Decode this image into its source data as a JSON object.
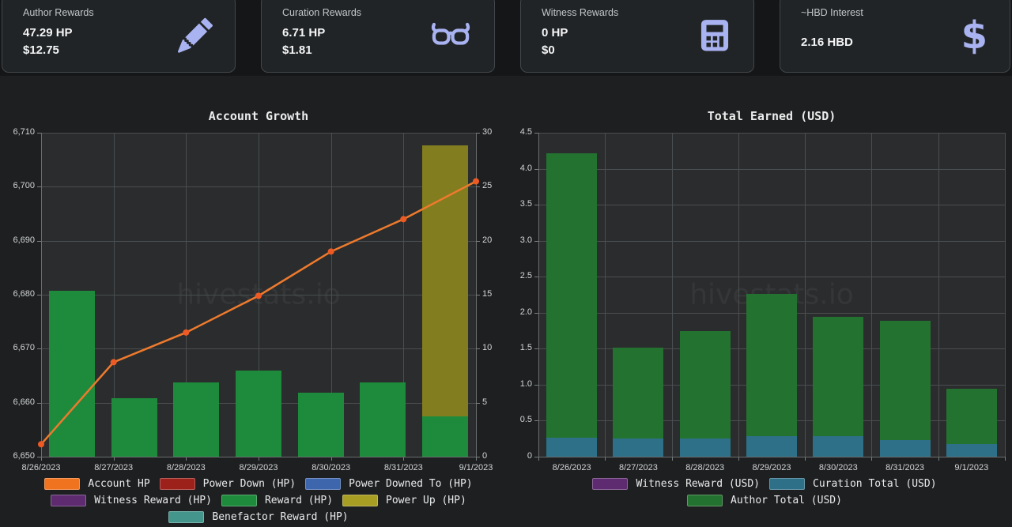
{
  "page": {
    "watermark": "hivestats.io",
    "accent_icon_color": "#a9b3f2",
    "background": "#1d1f20",
    "plot_background": "#2a2c2d",
    "gridline_color": "#4b4e50"
  },
  "cards": [
    {
      "label": "Author Rewards",
      "value": "47.29 HP",
      "value_usd": "$12.75",
      "icon": "pencil-icon"
    },
    {
      "label": "Curation Rewards",
      "value": "6.71 HP",
      "value_usd": "$1.81",
      "icon": "glasses-icon"
    },
    {
      "label": "Witness Rewards",
      "value": "0 HP",
      "value_usd": "$0",
      "icon": "calculator-icon"
    },
    {
      "label": "~HBD Interest",
      "value": "2.16 HBD",
      "icon": "dollar-icon"
    }
  ],
  "chart_data": [
    {
      "type": "bar+line combo",
      "title": "Account Growth",
      "categories": [
        "8/26/2023",
        "8/27/2023",
        "8/28/2023",
        "8/29/2023",
        "8/30/2023",
        "8/31/2023",
        "9/1/2023"
      ],
      "left_axis": {
        "min": 6650,
        "max": 6710,
        "ticks": [
          "6,710",
          "6,700",
          "6,690",
          "6,680",
          "6,670",
          "6,660",
          "6,650"
        ]
      },
      "right_axis": {
        "min": 0,
        "max": 30,
        "ticks": [
          "30",
          "25",
          "20",
          "15",
          "10",
          "5",
          "0"
        ]
      },
      "line_series": {
        "name": "Account HP",
        "axis": "left",
        "color": "#ee7a2d",
        "point_color": "#ee5a24",
        "values": [
          6652.3,
          6667.5,
          6673.0,
          6679.8,
          6688.0,
          6694.0,
          6701.0
        ]
      },
      "bar_series": [
        {
          "name": "Reward (HP)",
          "axis": "right",
          "color": "#1e8b3c",
          "values": [
            15.4,
            5.4,
            6.9,
            8.0,
            5.9,
            6.9,
            3.7
          ]
        },
        {
          "name": "Power Up (HP)",
          "axis": "right",
          "color": "#827d1e",
          "values": [
            0,
            0,
            0,
            0,
            0,
            0,
            25.1
          ]
        }
      ],
      "legend_rows": [
        [
          {
            "label": "Account HP",
            "color": "#f0741f"
          },
          {
            "label": "Power Down (HP)",
            "color": "#9c211b"
          },
          {
            "label": "Power Downed To (HP)",
            "color": "#3e66ad"
          }
        ],
        [
          {
            "label": "Witness Reward (HP)",
            "color": "#5e2b71"
          },
          {
            "label": "Reward (HP)",
            "color": "#1e8b3c"
          },
          {
            "label": "Power Up (HP)",
            "color": "#a89e23"
          }
        ],
        [
          {
            "label": "Benefactor Reward (HP)",
            "color": "#44968c"
          }
        ]
      ]
    },
    {
      "type": "stacked bar",
      "title": "Total Earned (USD)",
      "categories": [
        "8/26/2023",
        "8/27/2023",
        "8/28/2023",
        "8/29/2023",
        "8/30/2023",
        "8/31/2023",
        "9/1/2023"
      ],
      "y_axis": {
        "min": 0,
        "max": 4.5,
        "ticks": [
          "4.5",
          "4.0",
          "3.5",
          "3.0",
          "2.5",
          "2.0",
          "1.5",
          "1.0",
          "0.5",
          "0"
        ]
      },
      "series": [
        {
          "name": "Curation Total (USD)",
          "color": "#2d7088",
          "values": [
            0.26,
            0.25,
            0.25,
            0.28,
            0.29,
            0.23,
            0.18
          ]
        },
        {
          "name": "Author Total (USD)",
          "color": "#24722f",
          "values": [
            3.95,
            1.26,
            1.49,
            1.98,
            1.65,
            1.66,
            0.76
          ]
        }
      ],
      "totals": [
        4.21,
        1.51,
        1.74,
        2.26,
        1.94,
        1.89,
        0.94
      ],
      "legend_rows": [
        [
          {
            "label": "Witness Reward (USD)",
            "color": "#5e2b71"
          },
          {
            "label": "Curation Total (USD)",
            "color": "#2d7088"
          }
        ],
        [
          {
            "label": "Author Total (USD)",
            "color": "#24722f"
          }
        ]
      ]
    }
  ]
}
